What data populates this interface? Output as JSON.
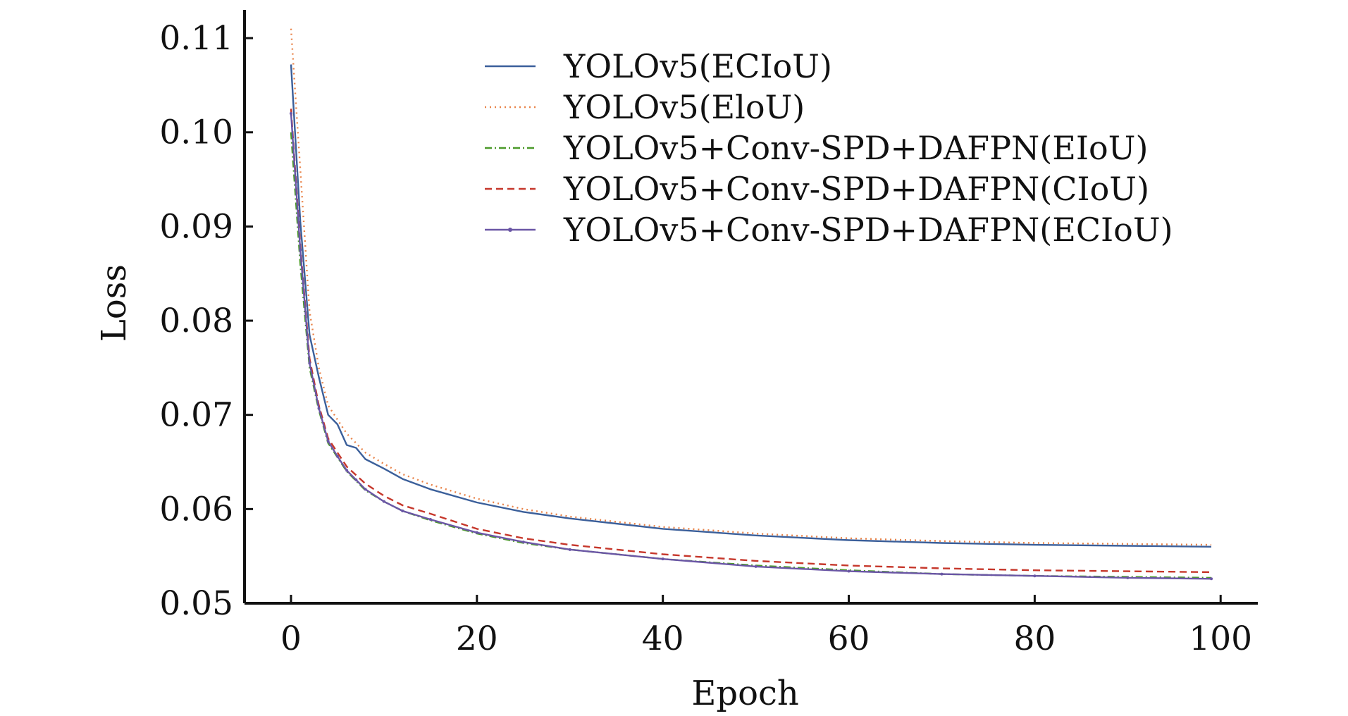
{
  "chart_data": {
    "type": "line",
    "title": "",
    "xlabel": "Epoch",
    "ylabel": "Loss",
    "xlim": [
      -5,
      104
    ],
    "ylim": [
      0.05,
      0.113
    ],
    "xticks": [
      0,
      20,
      40,
      60,
      80,
      100
    ],
    "xtick_labels": [
      "0",
      "20",
      "40",
      "60",
      "80",
      "100"
    ],
    "yticks": [
      0.05,
      0.06,
      0.07,
      0.08,
      0.09,
      0.1,
      0.11
    ],
    "ytick_labels": [
      "0.05",
      "0.06",
      "0.07",
      "0.08",
      "0.09",
      "0.10",
      "0.11"
    ],
    "grid": false,
    "legend_position": "top-right",
    "x": [
      0,
      1,
      2,
      3,
      4,
      5,
      6,
      7,
      8,
      10,
      12,
      15,
      20,
      25,
      30,
      40,
      50,
      60,
      70,
      80,
      90,
      99
    ],
    "series": [
      {
        "name": "YOLOv5(ECIoU)",
        "color": "#3b5f9a",
        "dash": "solid",
        "values": [
          0.1072,
          0.0905,
          0.0785,
          0.074,
          0.07,
          0.069,
          0.0668,
          0.0665,
          0.0653,
          0.0643,
          0.0632,
          0.0621,
          0.0607,
          0.0597,
          0.059,
          0.0579,
          0.0572,
          0.0567,
          0.0564,
          0.0562,
          0.0561,
          0.056
        ]
      },
      {
        "name": "YOLOv5(EloU)",
        "color": "#e9844a",
        "dash": "dotted",
        "values": [
          0.111,
          0.096,
          0.081,
          0.075,
          0.071,
          0.0695,
          0.068,
          0.067,
          0.066,
          0.0648,
          0.0637,
          0.0626,
          0.0611,
          0.06,
          0.0592,
          0.0581,
          0.0574,
          0.0569,
          0.0566,
          0.0564,
          0.0563,
          0.0562
        ]
      },
      {
        "name": "YOLOv5+Conv-SPD+DAFPN(EIoU)",
        "color": "#4c9a2a",
        "dash": "dashdot",
        "values": [
          0.1,
          0.086,
          0.075,
          0.0705,
          0.067,
          0.0655,
          0.064,
          0.063,
          0.062,
          0.0608,
          0.0598,
          0.0588,
          0.0574,
          0.0564,
          0.0557,
          0.0547,
          0.054,
          0.0535,
          0.0531,
          0.0529,
          0.0528,
          0.0527
        ]
      },
      {
        "name": "YOLOv5+Conv-SPD+DAFPN(CIoU)",
        "color": "#c6372b",
        "dash": "dashed",
        "values": [
          0.1025,
          0.088,
          0.076,
          0.071,
          0.0675,
          0.066,
          0.0645,
          0.0636,
          0.0627,
          0.0614,
          0.0604,
          0.0595,
          0.0579,
          0.0569,
          0.0562,
          0.0552,
          0.0545,
          0.054,
          0.0537,
          0.0535,
          0.0534,
          0.0533
        ]
      },
      {
        "name": "YOLOv5+Conv-SPD+DAFPN(ECIoU)",
        "color": "#6a56a5",
        "dash": "solid-marker",
        "values": [
          0.102,
          0.0875,
          0.0755,
          0.0707,
          0.0672,
          0.0656,
          0.0641,
          0.0631,
          0.0621,
          0.0608,
          0.0598,
          0.0589,
          0.0575,
          0.0565,
          0.0557,
          0.0547,
          0.0539,
          0.0534,
          0.0531,
          0.0529,
          0.0527,
          0.0526
        ]
      }
    ]
  }
}
